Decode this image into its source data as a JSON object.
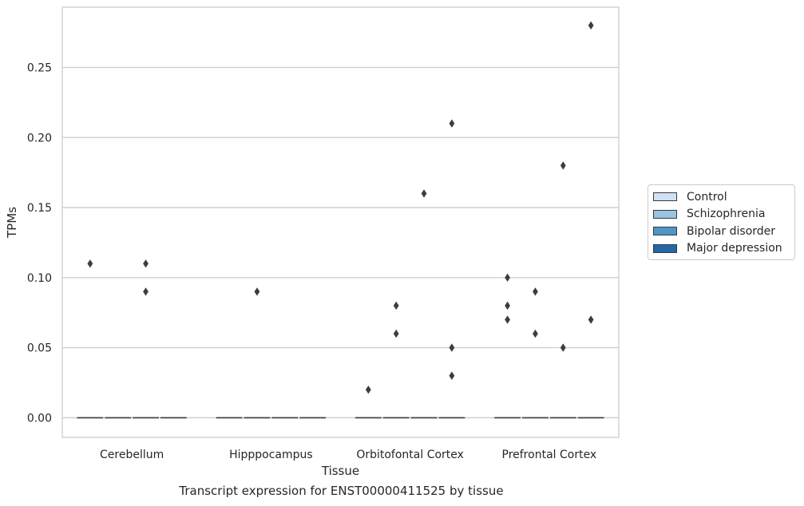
{
  "chart_data": {
    "type": "box",
    "xlabel": "Tissue",
    "ylabel": "TPMs",
    "caption": "Transcript expression for ENST00000411525 by tissue",
    "categories": [
      "Cerebellum",
      "Hipppocampus",
      "Orbitofontal Cortex",
      "Prefrontal Cortex"
    ],
    "ylim": [
      -0.014,
      0.293
    ],
    "yticks": [
      "0.00",
      "0.05",
      "0.10",
      "0.15",
      "0.20",
      "0.25"
    ],
    "grid": "horizontal",
    "legend_position": "right",
    "series": [
      {
        "name": "Control",
        "color": "#d0e2f2",
        "median": [
          0,
          0,
          0,
          0
        ],
        "outliers": [
          [
            0.11
          ],
          [],
          [
            0.02
          ],
          [
            0.1,
            0.08,
            0.07
          ]
        ]
      },
      {
        "name": "Schizophrenia",
        "color": "#98c5df",
        "median": [
          0,
          0,
          0,
          0
        ],
        "outliers": [
          [],
          [
            0.09
          ],
          [
            0.08,
            0.06
          ],
          [
            0.09,
            0.06
          ]
        ]
      },
      {
        "name": "Bipolar disorder",
        "color": "#4f96c8",
        "median": [
          0,
          0,
          0,
          0
        ],
        "outliers": [
          [
            0.11,
            0.09
          ],
          [],
          [
            0.16
          ],
          [
            0.18,
            0.05
          ]
        ]
      },
      {
        "name": "Major depression",
        "color": "#2369a9",
        "median": [
          0,
          0,
          0,
          0
        ],
        "outliers": [
          [],
          [],
          [
            0.21,
            0.05,
            0.03
          ],
          [
            0.28,
            0.07
          ]
        ]
      }
    ]
  }
}
